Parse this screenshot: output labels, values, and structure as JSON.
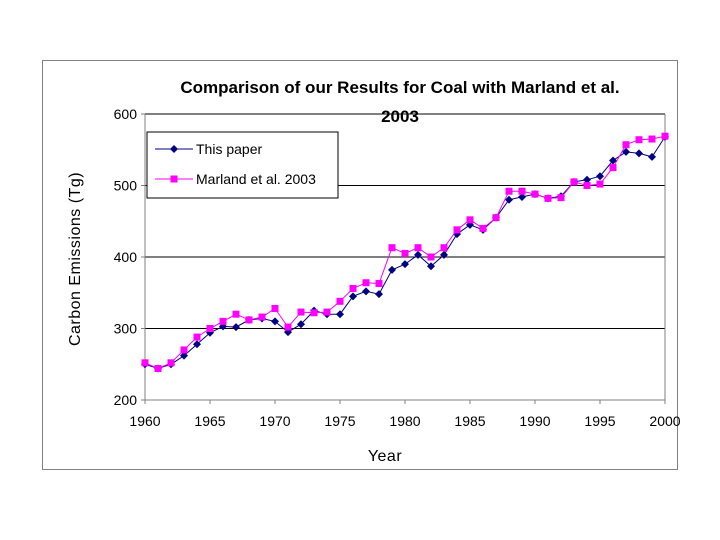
{
  "chart_data": {
    "type": "line",
    "title_lines": [
      "Comparison of our Results for Coal with Marland et al.",
      "2003"
    ],
    "xlabel": "Year",
    "ylabel": "Carbon Emissions (Tg)",
    "xlim": [
      1960,
      2000
    ],
    "ylim": [
      200,
      600
    ],
    "xticks": [
      "1960",
      "1965",
      "1970",
      "1975",
      "1980",
      "1985",
      "1990",
      "1995",
      "2000"
    ],
    "yticks": [
      "200",
      "300",
      "400",
      "500",
      "600"
    ],
    "grid": "horizontal",
    "legend_position": "top-left",
    "x": [
      1960,
      1961,
      1962,
      1963,
      1964,
      1965,
      1966,
      1967,
      1968,
      1969,
      1970,
      1971,
      1972,
      1973,
      1974,
      1975,
      1976,
      1977,
      1978,
      1979,
      1980,
      1981,
      1982,
      1983,
      1984,
      1985,
      1986,
      1987,
      1988,
      1989,
      1990,
      1991,
      1992,
      1993,
      1994,
      1995,
      1996,
      1997,
      1998,
      1999,
      2000
    ],
    "series": [
      {
        "name": "This paper",
        "color": "#000080",
        "marker": "diamond",
        "values": [
          250,
          244,
          250,
          262,
          278,
          294,
          303,
          302,
          312,
          314,
          310,
          295,
          306,
          325,
          320,
          320,
          345,
          352,
          348,
          382,
          390,
          403,
          387,
          403,
          432,
          445,
          438,
          455,
          480,
          484,
          488,
          482,
          485,
          505,
          508,
          513,
          535,
          547,
          545,
          540,
          568
        ]
      },
      {
        "name": "Marland et al. 2003",
        "color": "#ff00ff",
        "marker": "square",
        "values": [
          252,
          244,
          252,
          270,
          288,
          300,
          310,
          320,
          312,
          316,
          328,
          302,
          323,
          322,
          323,
          338,
          356,
          364,
          363,
          413,
          405,
          413,
          400,
          413,
          438,
          452,
          440,
          455,
          492,
          492,
          488,
          482,
          483,
          505,
          500,
          502,
          525,
          557,
          564,
          565,
          569
        ]
      }
    ]
  }
}
